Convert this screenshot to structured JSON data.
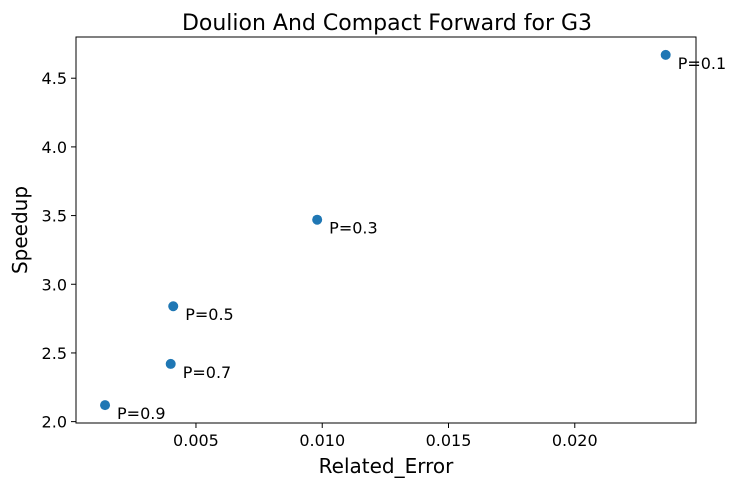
{
  "chart_data": {
    "type": "scatter",
    "title": "Doulion And Compact Forward for G3",
    "xlabel": "Related_Error",
    "ylabel": "Speedup",
    "xlim": [
      0.00025,
      0.0248
    ],
    "ylim": [
      1.99,
      4.8
    ],
    "xticks": [
      0.005,
      0.01,
      0.015,
      0.02
    ],
    "xtick_labels": [
      "0.005",
      "0.010",
      "0.015",
      "0.020"
    ],
    "yticks": [
      2.0,
      2.5,
      3.0,
      3.5,
      4.0,
      4.5
    ],
    "ytick_labels": [
      "2.0",
      "2.5",
      "3.0",
      "3.5",
      "4.0",
      "4.5"
    ],
    "grid": false,
    "marker_color": "#1f77b4",
    "points": [
      {
        "x": 0.0236,
        "y": 4.67,
        "label": "P=0.1"
      },
      {
        "x": 0.0098,
        "y": 3.47,
        "label": "P=0.3"
      },
      {
        "x": 0.0041,
        "y": 2.84,
        "label": "P=0.5"
      },
      {
        "x": 0.004,
        "y": 2.42,
        "label": "P=0.7"
      },
      {
        "x": 0.0014,
        "y": 2.12,
        "label": "P=0.9"
      }
    ]
  }
}
